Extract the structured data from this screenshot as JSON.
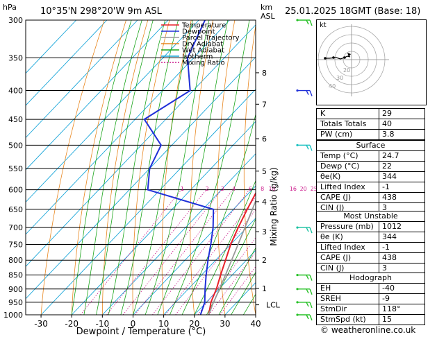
{
  "header": {
    "location": "10°35'N 298°20'W 9m ASL",
    "datetime": "25.01.2025 18GMT (Base: 18)",
    "hpa_unit": "hPa",
    "km_unit": "km",
    "asl_label": "ASL"
  },
  "footer": {
    "credit": "© weatheronline.co.uk"
  },
  "legend": [
    {
      "label": "Temperature",
      "color": "#e8202a",
      "dash": ""
    },
    {
      "label": "Dewpoint",
      "color": "#1f2fd8",
      "dash": ""
    },
    {
      "label": "Parcel Trajectory",
      "color": "#999999",
      "dash": ""
    },
    {
      "label": "Dry Adiabat",
      "color": "#e8861e",
      "dash": ""
    },
    {
      "label": "Wet Adiabat",
      "color": "#1aa51a",
      "dash": ""
    },
    {
      "label": "Isotherm",
      "color": "#19a6d9",
      "dash": ""
    },
    {
      "label": "Mixing Ratio",
      "color": "#cc1a8c",
      "dash": "2,2"
    }
  ],
  "chart_data": {
    "type": "line",
    "xlabel": "Dewpoint / Temperature (°C)",
    "ylabel_right": "Mixing Ratio (g/kg)",
    "xlim": [
      -35,
      40
    ],
    "ylim": [
      1000,
      300
    ],
    "x_ticks": [
      -30,
      -20,
      -10,
      0,
      10,
      20,
      30,
      40
    ],
    "pressure_levels": [
      300,
      350,
      400,
      450,
      500,
      550,
      600,
      650,
      700,
      750,
      800,
      850,
      900,
      950,
      1000
    ],
    "km_ticks": [
      {
        "label": "8",
        "p": 372
      },
      {
        "label": "7",
        "p": 423
      },
      {
        "label": "6",
        "p": 487
      },
      {
        "label": "5",
        "p": 556
      },
      {
        "label": "4",
        "p": 630
      },
      {
        "label": "3",
        "p": 712
      },
      {
        "label": "2",
        "p": 800
      },
      {
        "label": "1",
        "p": 898
      }
    ],
    "lcl": {
      "label": "LCL",
      "p": 960
    },
    "mixing_ratio_labels": [
      "1",
      "2",
      "3",
      "4",
      "6",
      "8",
      "10",
      "16",
      "20",
      "25"
    ],
    "mixing_ratios": [
      1,
      2,
      3,
      4,
      6,
      8,
      10,
      16,
      20,
      25
    ],
    "mixing_label_p": 597,
    "series": [
      {
        "name": "Temperature",
        "color": "#e8202a",
        "points": [
          [
            1000,
            24.7
          ],
          [
            950,
            21.5
          ],
          [
            900,
            19.2
          ],
          [
            850,
            16.2
          ],
          [
            800,
            13.2
          ],
          [
            750,
            10.0
          ],
          [
            700,
            7.2
          ],
          [
            650,
            4.5
          ],
          [
            600,
            1.8
          ],
          [
            550,
            -1.5
          ],
          [
            500,
            -4.5
          ],
          [
            450,
            -8.5
          ],
          [
            400,
            -14.5
          ],
          [
            350,
            -21.5
          ],
          [
            300,
            -31
          ]
        ]
      },
      {
        "name": "Dewpoint",
        "color": "#1f2fd8",
        "points": [
          [
            1000,
            22
          ],
          [
            950,
            19.5
          ],
          [
            900,
            15.5
          ],
          [
            850,
            11.5
          ],
          [
            800,
            7.5
          ],
          [
            750,
            3.5
          ],
          [
            700,
            -1.0
          ],
          [
            650,
            -6.5
          ],
          [
            600,
            -34
          ],
          [
            550,
            -40
          ],
          [
            500,
            -43.5
          ],
          [
            450,
            -57
          ],
          [
            400,
            -51
          ],
          [
            350,
            -62
          ],
          [
            300,
            -68
          ]
        ]
      },
      {
        "name": "Parcel Trajectory",
        "color": "#999999",
        "points": [
          [
            1000,
            24.7
          ],
          [
            960,
            22.8
          ],
          [
            900,
            20.2
          ],
          [
            850,
            17.8
          ],
          [
            800,
            15.2
          ],
          [
            750,
            12.4
          ],
          [
            700,
            9.4
          ],
          [
            650,
            6.2
          ],
          [
            600,
            2.6
          ],
          [
            550,
            -1.3
          ],
          [
            500,
            -5.8
          ],
          [
            450,
            -11.2
          ],
          [
            400,
            -17.5
          ],
          [
            350,
            -25.5
          ],
          [
            300,
            -35
          ]
        ]
      }
    ]
  },
  "wind_barbs": [
    {
      "p": 1000,
      "color": "#26c026"
    },
    {
      "p": 950,
      "color": "#26c026"
    },
    {
      "p": 900,
      "color": "#26c026"
    },
    {
      "p": 850,
      "color": "#26c026"
    },
    {
      "p": 700,
      "color": "#19c0a0"
    },
    {
      "p": 500,
      "color": "#19c0c0"
    },
    {
      "p": 400,
      "color": "#1f2fd8"
    },
    {
      "p": 300,
      "color": "#26c026"
    }
  ],
  "hodograph": {
    "unit": "kt",
    "ring_labels": [
      "20",
      "30",
      "40"
    ]
  },
  "indices": {
    "K": {
      "label": "K",
      "value": "29"
    },
    "TT": {
      "label": "Totals Totals",
      "value": "40"
    },
    "PW": {
      "label": "PW (cm)",
      "value": "3.8"
    }
  },
  "surface": {
    "title": "Surface",
    "rows": [
      {
        "label": "Temp (°C)",
        "value": "24.7"
      },
      {
        "label": "Dewp (°C)",
        "value": "22"
      },
      {
        "label": "θe(K)",
        "value": "344"
      },
      {
        "label": "Lifted Index",
        "value": "-1"
      },
      {
        "label": "CAPE (J)",
        "value": "438"
      },
      {
        "label": "CIN (J)",
        "value": "3"
      }
    ]
  },
  "most_unstable": {
    "title": "Most Unstable",
    "rows": [
      {
        "label": "Pressure (mb)",
        "value": "1012"
      },
      {
        "label": "θe (K)",
        "value": "344"
      },
      {
        "label": "Lifted Index",
        "value": "-1"
      },
      {
        "label": "CAPE (J)",
        "value": "438"
      },
      {
        "label": "CIN (J)",
        "value": "3"
      }
    ]
  },
  "hodo_table": {
    "title": "Hodograph",
    "rows": [
      {
        "label": "EH",
        "value": "-40"
      },
      {
        "label": "SREH",
        "value": "-9"
      },
      {
        "label": "StmDir",
        "value": "118°"
      },
      {
        "label": "StmSpd (kt)",
        "value": "15"
      }
    ]
  }
}
